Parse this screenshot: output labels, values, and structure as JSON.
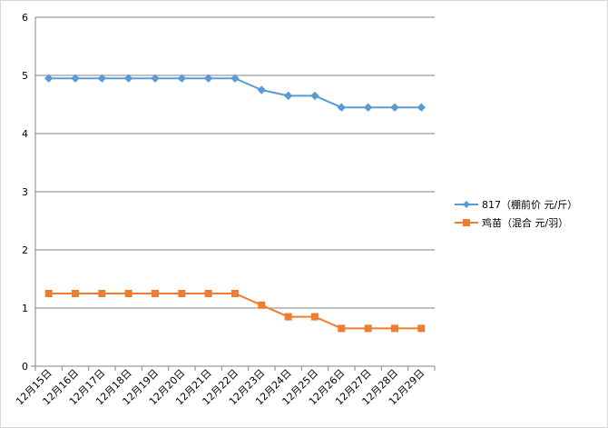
{
  "chart_data": {
    "type": "line",
    "title": "",
    "xlabel": "",
    "ylabel": "",
    "ylim": [
      0,
      6
    ],
    "yticks": [
      "0",
      "1",
      "2",
      "3",
      "4",
      "5",
      "6"
    ],
    "grid": true,
    "legend_position": "right",
    "categories": [
      "12月15日",
      "12月16日",
      "12月17日",
      "12月18日",
      "12月19日",
      "12月20日",
      "12月21日",
      "12月22日",
      "12月23日",
      "12月24日",
      "12月25日",
      "12月26日",
      "12月27日",
      "12月28日",
      "12月29日"
    ],
    "series": [
      {
        "name": "817（棚前价 元/斤）",
        "color": "#5b9bd5",
        "marker": "diamond",
        "values": [
          4.95,
          4.95,
          4.95,
          4.95,
          4.95,
          4.95,
          4.95,
          4.95,
          4.75,
          4.65,
          4.65,
          4.45,
          4.45,
          4.45,
          4.45
        ]
      },
      {
        "name": "鸡苗（混合 元/羽）",
        "color": "#ed7d31",
        "marker": "square",
        "values": [
          1.25,
          1.25,
          1.25,
          1.25,
          1.25,
          1.25,
          1.25,
          1.25,
          1.05,
          0.85,
          0.85,
          0.65,
          0.65,
          0.65,
          0.65
        ]
      }
    ]
  }
}
